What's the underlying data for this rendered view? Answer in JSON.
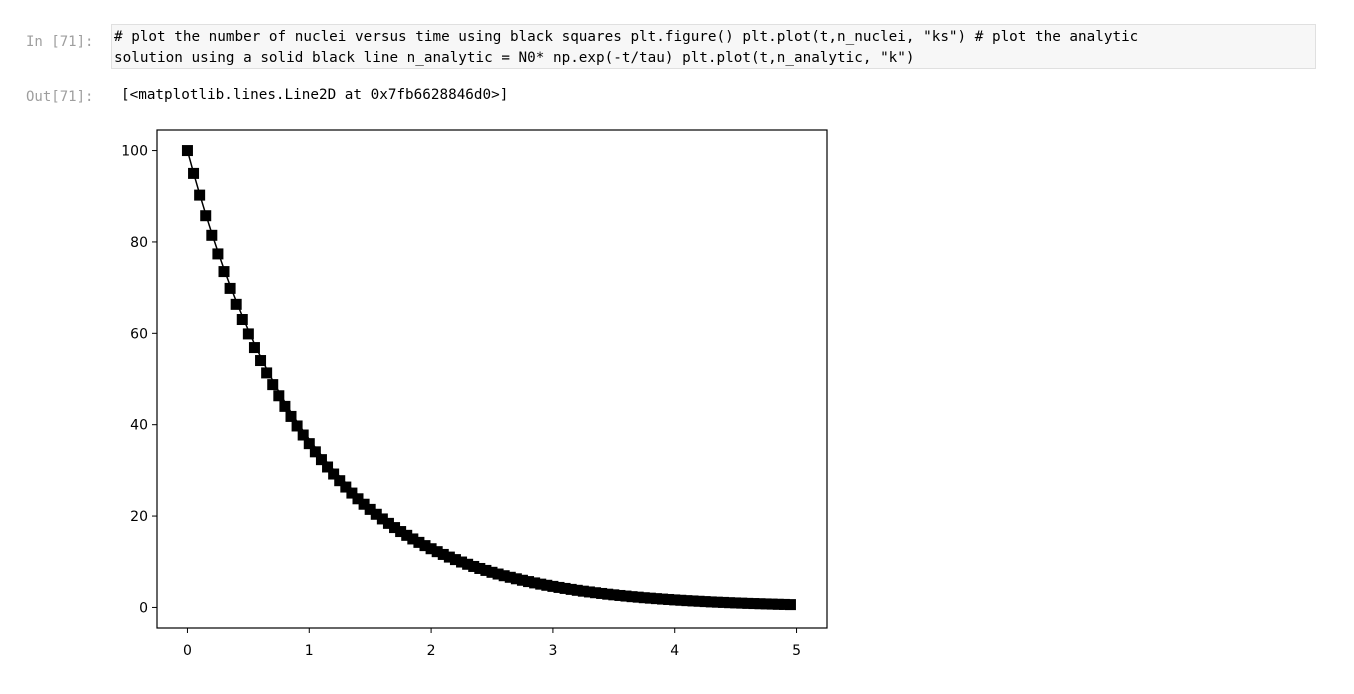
{
  "cells": {
    "input": {
      "prompt": "In [71]:",
      "code_lines": [
        "# plot the number of nuclei versus time using black squares plt.figure() plt.plot(t,n_nuclei, \"ks\") # plot the analytic",
        "solution using a solid black line n_analytic = N0* np.exp(-t/tau) plt.plot(t,n_analytic, \"k\")"
      ]
    },
    "output": {
      "prompt": "Out[71]:",
      "text": "[<matplotlib.lines.Line2D at 0x7fb6628846d0>]"
    }
  },
  "chart_data": {
    "type": "line",
    "title": "",
    "xlabel": "",
    "ylabel": "",
    "xlim": [
      -0.25,
      5.25
    ],
    "ylim": [
      -4.5,
      104.5
    ],
    "grid": false,
    "x_ticks": [
      0,
      1,
      2,
      3,
      4,
      5
    ],
    "y_ticks": [
      0,
      20,
      40,
      60,
      80,
      100
    ],
    "x_tick_labels": [
      "0",
      "1",
      "2",
      "3",
      "4",
      "5"
    ],
    "y_tick_labels": [
      "0",
      "20",
      "40",
      "60",
      "80",
      "100"
    ],
    "series": [
      {
        "style": "squares",
        "color": "#000000",
        "x": [
          0.0,
          0.05,
          0.1,
          0.15,
          0.2,
          0.25,
          0.3,
          0.35,
          0.4,
          0.45,
          0.5,
          0.55,
          0.6,
          0.65,
          0.7,
          0.75,
          0.8,
          0.85,
          0.9,
          0.95,
          1.0,
          1.05,
          1.1,
          1.15,
          1.2,
          1.25,
          1.3,
          1.35,
          1.4,
          1.45,
          1.5,
          1.55,
          1.6,
          1.65,
          1.7,
          1.75,
          1.8,
          1.85,
          1.9,
          1.95,
          2.0,
          2.05,
          2.1,
          2.15,
          2.2,
          2.25,
          2.3,
          2.35,
          2.4,
          2.45,
          2.5,
          2.55,
          2.6,
          2.65,
          2.7,
          2.75,
          2.8,
          2.85,
          2.9,
          2.95,
          3.0,
          3.05,
          3.1,
          3.15,
          3.2,
          3.25,
          3.3,
          3.35,
          3.4,
          3.45,
          3.5,
          3.55,
          3.6,
          3.65,
          3.7,
          3.75,
          3.8,
          3.85,
          3.9,
          3.95,
          4.0,
          4.05,
          4.1,
          4.15,
          4.2,
          4.25,
          4.3,
          4.35,
          4.4,
          4.45,
          4.5,
          4.55,
          4.6,
          4.65,
          4.7,
          4.75,
          4.8,
          4.85,
          4.9,
          4.95
        ],
        "y": [
          100.0,
          95.0,
          90.25,
          85.74,
          81.45,
          77.38,
          73.51,
          69.83,
          66.34,
          63.02,
          59.87,
          56.88,
          54.04,
          51.33,
          48.77,
          46.33,
          44.01,
          41.81,
          39.72,
          37.74,
          35.85,
          34.06,
          32.35,
          30.74,
          29.2,
          27.74,
          26.35,
          25.03,
          23.78,
          22.59,
          21.46,
          20.39,
          19.37,
          18.4,
          17.48,
          16.61,
          15.78,
          14.99,
          14.24,
          13.53,
          12.85,
          12.21,
          11.6,
          11.02,
          10.47,
          9.94,
          9.45,
          8.97,
          8.53,
          8.1,
          7.69,
          7.31,
          6.94,
          6.6,
          6.27,
          5.95,
          5.66,
          5.37,
          5.1,
          4.85,
          4.61,
          4.38,
          4.16,
          3.95,
          3.75,
          3.56,
          3.39,
          3.22,
          3.06,
          2.9,
          2.76,
          2.62,
          2.49,
          2.36,
          2.25,
          2.13,
          2.03,
          1.93,
          1.83,
          1.74,
          1.65,
          1.57,
          1.49,
          1.42,
          1.35,
          1.28,
          1.21,
          1.15,
          1.1,
          1.04,
          0.99,
          0.94,
          0.89,
          0.85,
          0.81,
          0.77,
          0.73,
          0.69,
          0.66,
          0.62
        ]
      },
      {
        "style": "solid",
        "color": "#000000",
        "x": [
          0.0,
          0.05,
          0.1,
          0.15,
          0.2,
          0.25,
          0.3,
          0.35,
          0.4,
          0.45,
          0.5,
          0.55,
          0.6,
          0.65,
          0.7,
          0.75,
          0.8,
          0.85,
          0.9,
          0.95,
          1.0,
          1.05,
          1.1,
          1.15,
          1.2,
          1.25,
          1.3,
          1.35,
          1.4,
          1.45,
          1.5,
          1.55,
          1.6,
          1.65,
          1.7,
          1.75,
          1.8,
          1.85,
          1.9,
          1.95,
          2.0,
          2.05,
          2.1,
          2.15,
          2.2,
          2.25,
          2.3,
          2.35,
          2.4,
          2.45,
          2.5,
          2.55,
          2.6,
          2.65,
          2.7,
          2.75,
          2.8,
          2.85,
          2.9,
          2.95,
          3.0,
          3.05,
          3.1,
          3.15,
          3.2,
          3.25,
          3.3,
          3.35,
          3.4,
          3.45,
          3.5,
          3.55,
          3.6,
          3.65,
          3.7,
          3.75,
          3.8,
          3.85,
          3.9,
          3.95,
          4.0,
          4.05,
          4.1,
          4.15,
          4.2,
          4.25,
          4.3,
          4.35,
          4.4,
          4.45,
          4.5,
          4.55,
          4.6,
          4.65,
          4.7,
          4.75,
          4.8,
          4.85,
          4.9,
          4.95
        ],
        "y": [
          100.0,
          95.12,
          90.48,
          86.07,
          81.87,
          77.88,
          74.08,
          70.47,
          67.03,
          63.76,
          60.65,
          57.7,
          54.88,
          52.2,
          49.66,
          47.24,
          44.93,
          42.74,
          40.66,
          38.67,
          36.79,
          34.99,
          33.29,
          31.66,
          30.12,
          28.65,
          27.25,
          25.92,
          24.66,
          23.46,
          22.31,
          21.22,
          20.19,
          19.2,
          18.27,
          17.38,
          16.53,
          15.72,
          14.96,
          14.23,
          13.53,
          12.87,
          12.25,
          11.65,
          11.08,
          10.54,
          10.03,
          9.54,
          9.07,
          8.63,
          8.21,
          7.81,
          7.43,
          7.07,
          6.72,
          6.39,
          6.08,
          5.78,
          5.5,
          5.23,
          4.98,
          4.74,
          4.5,
          4.29,
          4.08,
          3.88,
          3.69,
          3.51,
          3.34,
          3.17,
          3.02,
          2.87,
          2.73,
          2.6,
          2.47,
          2.35,
          2.24,
          2.13,
          2.02,
          1.93,
          1.83,
          1.74,
          1.66,
          1.58,
          1.5,
          1.43,
          1.36,
          1.29,
          1.23,
          1.17,
          1.11,
          1.06,
          1.01,
          0.96,
          0.91,
          0.87,
          0.82,
          0.78,
          0.74,
          0.71
        ]
      }
    ]
  }
}
